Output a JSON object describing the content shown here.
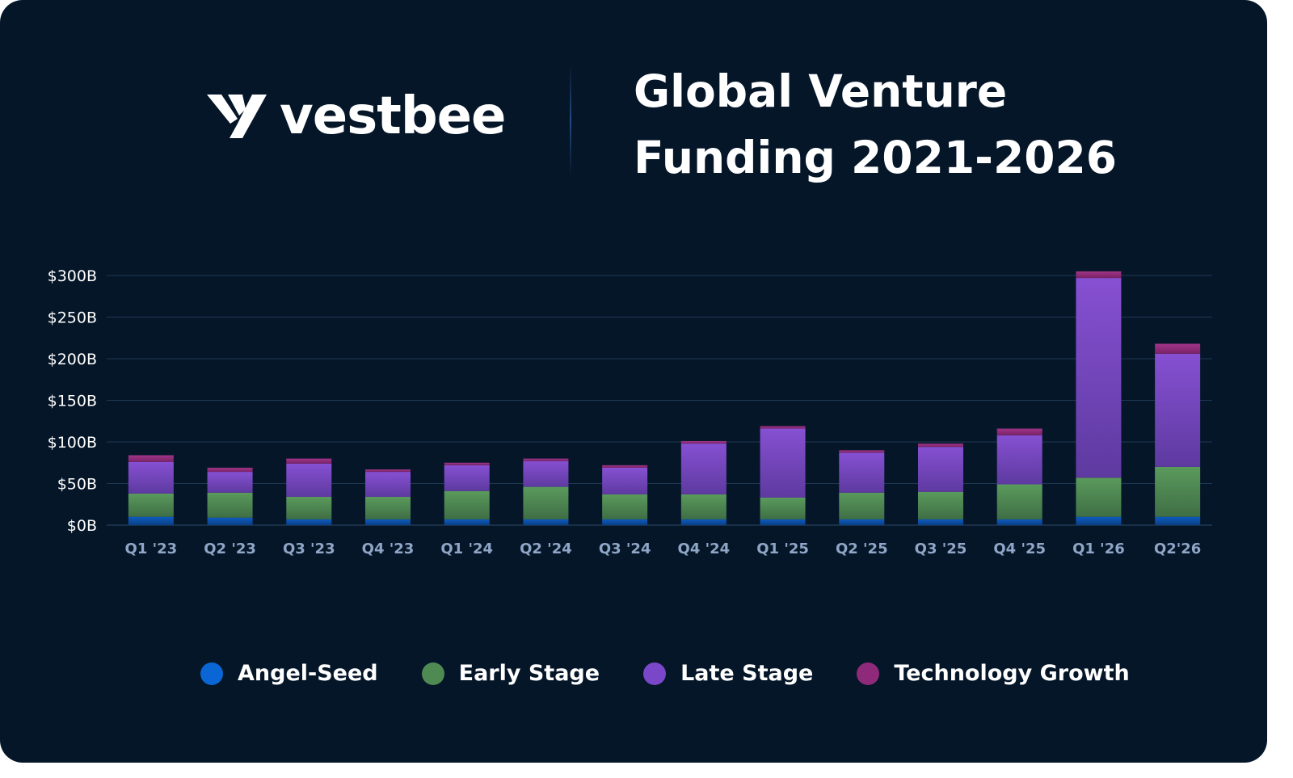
{
  "brand": {
    "name": "vestbee",
    "logo_icon": "vestbee-y-logo-icon"
  },
  "header": {
    "title_line1": "Global Venture",
    "title_line2": "Funding 2021-2026"
  },
  "colors": {
    "background": "#051629",
    "angel_seed": "#0a66d4",
    "early_stage": "#4f8a52",
    "late_stage": "#7a47c8",
    "technology_growth": "#8f2a7a",
    "grid": "#1e3854",
    "axis_text": "#ffffff",
    "category_text": "#8fa6c6"
  },
  "chart_data": {
    "type": "bar",
    "stacked": true,
    "categories": [
      "Q1 '23",
      "Q2 '23",
      "Q3 '23",
      "Q4 '23",
      "Q1 '24",
      "Q2 '24",
      "Q3 '24",
      "Q4 '24",
      "Q1 '25",
      "Q2 '25",
      "Q3 '25",
      "Q4 '25",
      "Q1 '26",
      "Q2'26"
    ],
    "yticks": [
      "$0B",
      "$50B",
      "$100B",
      "$150B",
      "$200B",
      "$250B",
      "$300B"
    ],
    "ylim": [
      0,
      300
    ],
    "grid": true,
    "legend_position": "bottom-center",
    "series": [
      {
        "name": "Angel-Seed",
        "color": "#0a66d4",
        "values": [
          10,
          9,
          7,
          7,
          7,
          7,
          7,
          7,
          7,
          7,
          7,
          7,
          10,
          10
        ]
      },
      {
        "name": "Early Stage",
        "color": "#4f8a52",
        "values": [
          28,
          30,
          27,
          27,
          34,
          39,
          30,
          30,
          26,
          32,
          33,
          42,
          47,
          60
        ]
      },
      {
        "name": "Late Stage",
        "color": "#7a47c8",
        "values": [
          38,
          25,
          40,
          30,
          31,
          31,
          32,
          61,
          83,
          48,
          54,
          59,
          240,
          136
        ]
      },
      {
        "name": "Technology Growth",
        "color": "#8f2a7a",
        "values": [
          8,
          5,
          6,
          3,
          3,
          3,
          3,
          3,
          3,
          3,
          4,
          8,
          8,
          12
        ]
      }
    ]
  }
}
